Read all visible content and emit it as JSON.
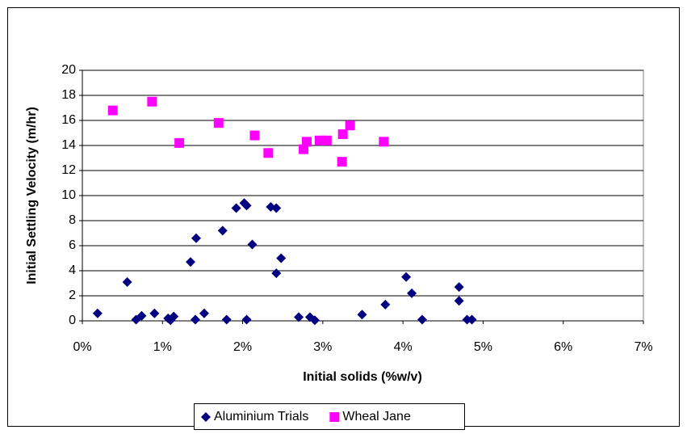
{
  "chart_data": {
    "type": "scatter",
    "xlabel": "Initial solids (%w/v)",
    "ylabel": "Initial Settling Velocity (m/hr)",
    "xlim": [
      0,
      7
    ],
    "xticks": [
      {
        "value": 0,
        "label": "0%"
      },
      {
        "value": 1,
        "label": "1%"
      },
      {
        "value": 2,
        "label": "2%"
      },
      {
        "value": 3,
        "label": "3%"
      },
      {
        "value": 4,
        "label": "4%"
      },
      {
        "value": 5,
        "label": "5%"
      },
      {
        "value": 6,
        "label": "6%"
      },
      {
        "value": 7,
        "label": "7%"
      }
    ],
    "ylim": [
      0,
      20
    ],
    "yticks": [
      0,
      2,
      4,
      6,
      8,
      10,
      12,
      14,
      16,
      18,
      20
    ],
    "grid": true,
    "legend": "bottom",
    "series": [
      {
        "name": "Aluminium Trials",
        "color": "#000080",
        "marker": "diamond",
        "x": [
          0.19,
          0.56,
          0.67,
          0.74,
          0.9,
          1.07,
          1.1,
          1.14,
          1.35,
          1.42,
          1.41,
          1.52,
          1.75,
          1.8,
          1.92,
          2.02,
          2.05,
          2.05,
          2.12,
          2.35,
          2.42,
          2.42,
          2.48,
          2.7,
          2.84,
          2.9,
          3.49,
          3.78,
          4.04,
          4.11,
          4.24,
          4.7,
          4.7,
          4.8,
          4.86
        ],
        "values": [
          0.6,
          3.1,
          0.1,
          0.4,
          0.6,
          0.2,
          0.05,
          0.35,
          4.7,
          6.6,
          0.1,
          0.6,
          7.2,
          0.1,
          9.0,
          9.4,
          9.2,
          0.1,
          6.1,
          9.1,
          9.0,
          3.8,
          5.0,
          0.3,
          0.3,
          0.05,
          0.5,
          1.3,
          3.5,
          2.2,
          0.1,
          2.7,
          1.6,
          0.1,
          0.1
        ]
      },
      {
        "name": "Wheal Jane",
        "color": "#ff00ff",
        "marker": "square",
        "x": [
          0.38,
          0.87,
          1.21,
          1.7,
          2.15,
          2.32,
          2.76,
          2.8,
          2.96,
          3.05,
          3.24,
          3.25,
          3.34,
          3.76
        ],
        "values": [
          16.8,
          17.5,
          14.2,
          15.8,
          14.8,
          13.4,
          13.7,
          14.3,
          14.4,
          14.4,
          12.7,
          14.9,
          15.6,
          14.3
        ]
      }
    ]
  }
}
